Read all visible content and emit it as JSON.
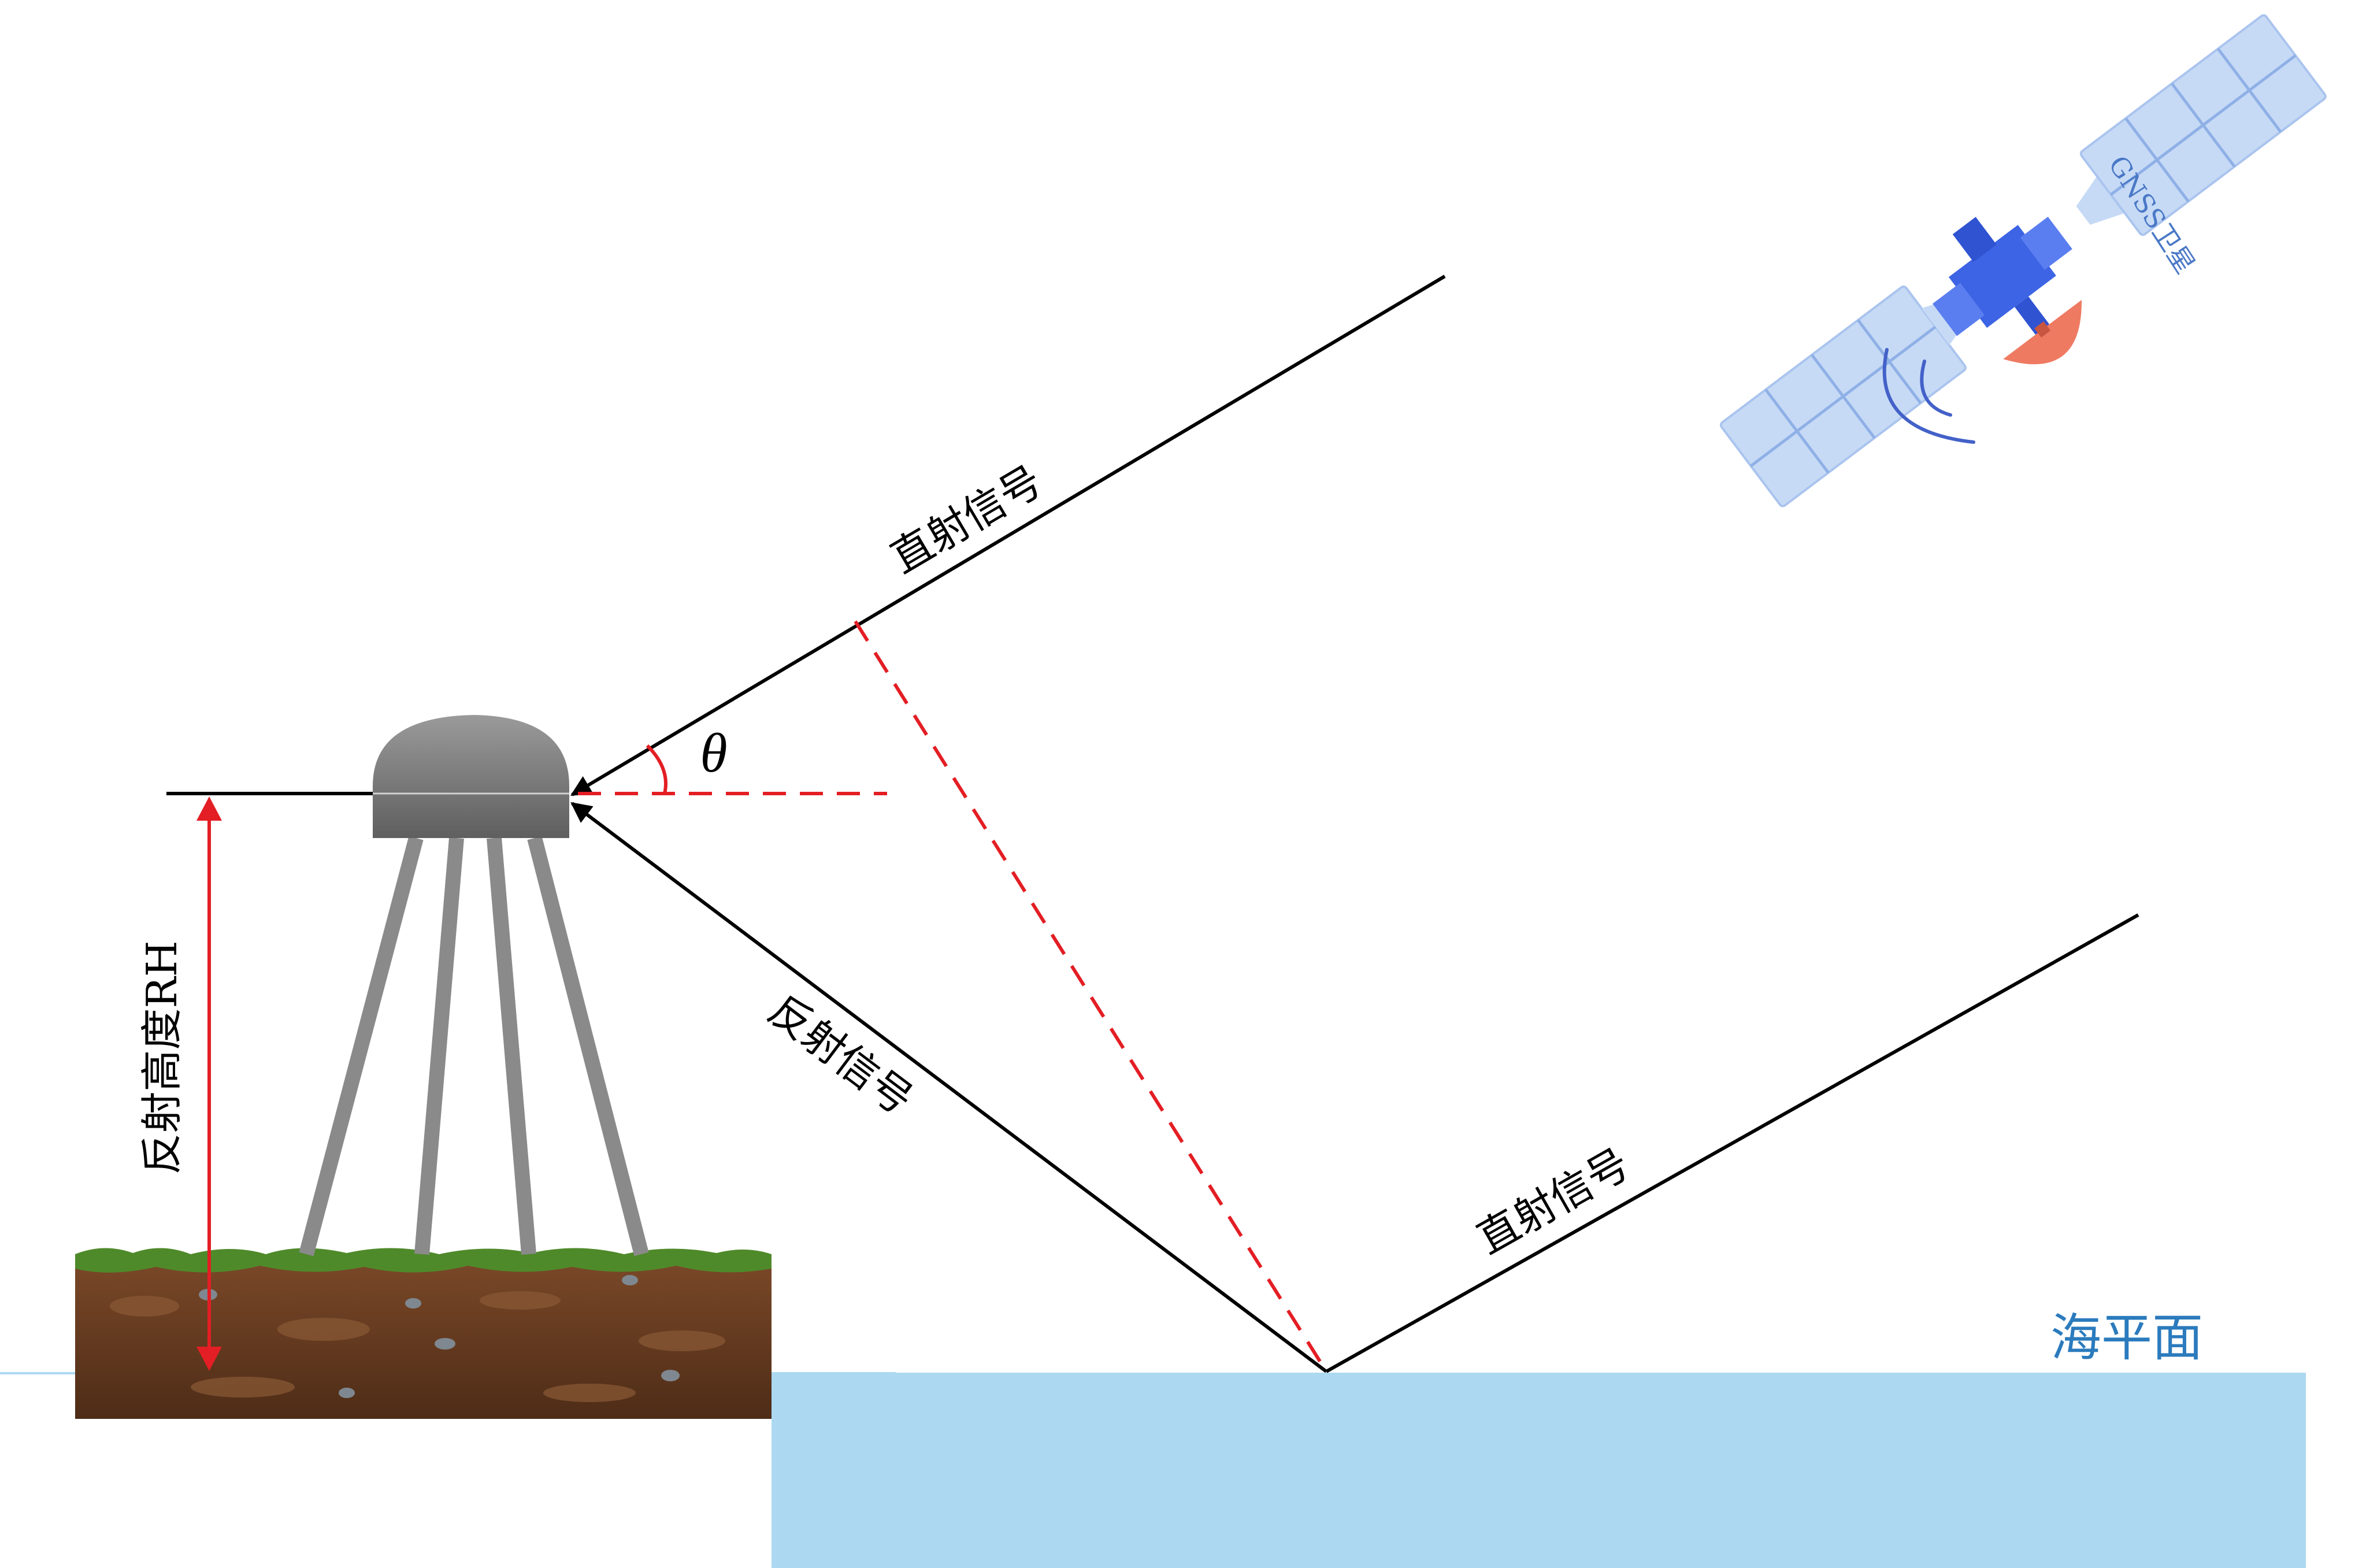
{
  "labels": {
    "direct_signal_upper": "直射信号",
    "direct_signal_lower": "直射信号",
    "reflected_signal": "反射信号",
    "reflector_height": "反射高度RH",
    "angle_symbol": "θ",
    "sea_level": "海平面",
    "satellite": "GNSS卫星"
  },
  "colors": {
    "sea": "#acd9f1",
    "sea_text": "#2b7bbd",
    "satellite_text": "#4a78c6",
    "red_marks": "#e31e24",
    "antenna": "#7a7a7a",
    "legs": "#8a8a8a",
    "soil": "#6b3d22",
    "grass": "#4f8a2a",
    "panel": "#c6daf6",
    "panel_lines": "#8fb0e6",
    "satellite_body": "#3d64e4",
    "dish": "#ef7a62",
    "signal_arcs": "#4361c8"
  },
  "icons": {
    "satellite": "satellite-icon",
    "antenna": "antenna-icon",
    "ground": "soil-block-icon"
  }
}
